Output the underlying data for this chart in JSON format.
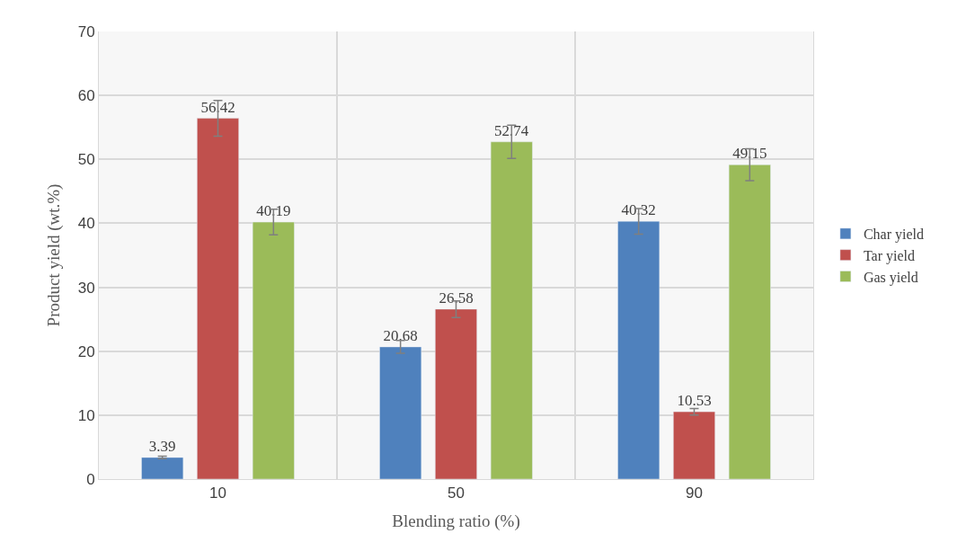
{
  "chart_data": {
    "type": "bar",
    "xlabel": "Blending ratio (%)",
    "ylabel": "Product yield (wt.%)",
    "categories": [
      "10",
      "50",
      "90"
    ],
    "series": [
      {
        "name": "Char yield",
        "color": "#4f81bd",
        "values": [
          3.39,
          20.68,
          40.32
        ],
        "errors": [
          0.2,
          1,
          2
        ]
      },
      {
        "name": "Tar yield",
        "color": "#c0504d",
        "values": [
          56.42,
          26.58,
          10.53
        ],
        "errors": [
          2.8,
          1.3,
          0.5
        ]
      },
      {
        "name": "Gas yield",
        "color": "#9bbb59",
        "values": [
          40.19,
          52.74,
          49.15
        ],
        "errors": [
          2,
          2.6,
          2.5
        ]
      }
    ],
    "ylim": [
      0,
      70
    ],
    "yticks": [
      0,
      10,
      20,
      30,
      40,
      50,
      60,
      70
    ],
    "grid": true,
    "legend": "right",
    "data_labels": true
  }
}
